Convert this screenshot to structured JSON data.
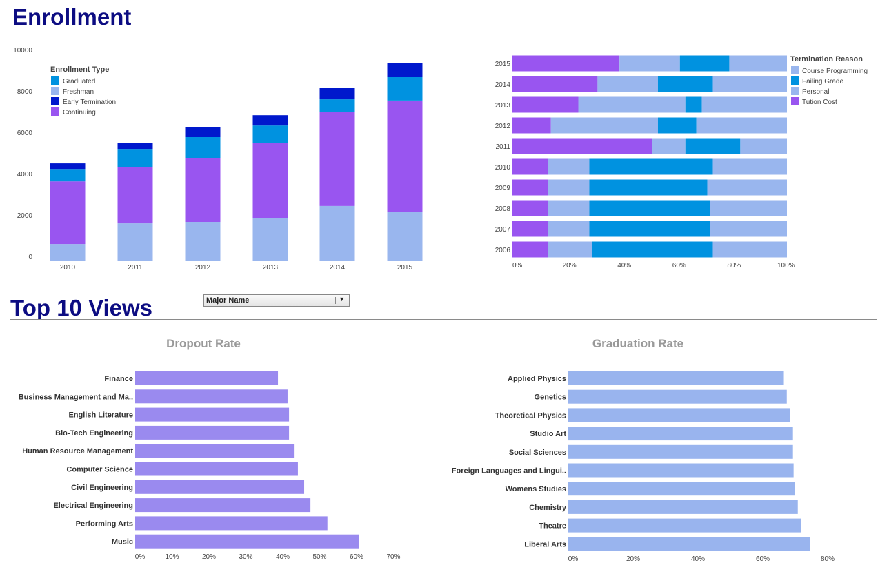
{
  "enrollment_section": {
    "title": "Enrollment"
  },
  "top10_section": {
    "title": "Top 10 Views",
    "filter": {
      "selected": "Major Name"
    }
  },
  "colors": {
    "title": "#0c0c82",
    "graduated": "#0092e0",
    "freshman": "#99b6ee",
    "early_termination": "#0018cc",
    "continuing": "#9955f0",
    "dropout_bar": "#9a8aef",
    "graduation_bar": "#99b4ee"
  },
  "chart_data": [
    {
      "id": "enrollment",
      "type": "bar",
      "stacked": true,
      "legend_title": "Enrollment Type",
      "legend_placement": "top-left",
      "legend": [
        "Graduated",
        "Freshman",
        "Early Termination",
        "Continuing"
      ],
      "categories": [
        "2010",
        "2011",
        "2012",
        "2013",
        "2014",
        "2015"
      ],
      "ylim": [
        0,
        10000
      ],
      "yticks": [
        "0",
        "2000",
        "4000",
        "6000",
        "8000",
        "10000"
      ],
      "grid": false,
      "series": [
        {
          "name": "Freshman",
          "color": "#99b6ee",
          "values": [
            830,
            1830,
            1900,
            2100,
            2670,
            2370
          ]
        },
        {
          "name": "Continuing",
          "color": "#9955f0",
          "values": [
            3030,
            2730,
            3070,
            3630,
            4530,
            5400
          ]
        },
        {
          "name": "Graduated",
          "color": "#0092e0",
          "values": [
            600,
            870,
            1030,
            830,
            630,
            1130
          ]
        },
        {
          "name": "Early Termination",
          "color": "#0018cc",
          "values": [
            270,
            270,
            500,
            500,
            570,
            700
          ]
        }
      ]
    },
    {
      "id": "termination",
      "type": "bar",
      "orientation": "horizontal",
      "stacked": true,
      "percent": true,
      "legend_title": "Termination Reason",
      "legend_placement": "right",
      "legend": [
        {
          "name": "Course Programming",
          "color": "#99b6ee"
        },
        {
          "name": "Failing Grade",
          "color": "#0092e0"
        },
        {
          "name": "Personal",
          "color": "#99b6ee"
        },
        {
          "name": "Tution Cost",
          "color": "#9955f0"
        }
      ],
      "categories": [
        "2015",
        "2014",
        "2013",
        "2012",
        "2011",
        "2010",
        "2009",
        "2008",
        "2007",
        "2006"
      ],
      "xlim": [
        0,
        100
      ],
      "xticks": [
        "0%",
        "20%",
        "40%",
        "60%",
        "80%",
        "100%"
      ],
      "series": [
        {
          "name": "Tution Cost",
          "color": "#9955f0",
          "values": [
            39,
            31,
            24,
            14,
            51,
            13,
            13,
            13,
            13,
            13
          ]
        },
        {
          "name": "Personal",
          "color": "#99b6ee",
          "values": [
            22,
            22,
            39,
            39,
            12,
            15,
            15,
            15,
            15,
            16
          ]
        },
        {
          "name": "Failing Grade",
          "color": "#0092e0",
          "values": [
            18,
            20,
            6,
            14,
            20,
            45,
            43,
            44,
            44,
            44
          ]
        },
        {
          "name": "Course Programming",
          "color": "#99b6ee",
          "values": [
            21,
            27,
            31,
            33,
            17,
            27,
            29,
            28,
            28,
            27
          ]
        }
      ]
    },
    {
      "id": "dropout",
      "type": "bar",
      "orientation": "horizontal",
      "title": "Dropout Rate",
      "categories": [
        "Finance",
        "Business Management and Ma..",
        "English Literature",
        "Bio-Tech Engineering",
        "Human Resource Management",
        "Computer Science",
        "Civil Engineering",
        "Electrical Engineering",
        "Performing Arts",
        "Music"
      ],
      "values": [
        38.7,
        41.3,
        41.7,
        41.7,
        43.2,
        44.1,
        45.8,
        47.5,
        52.1,
        60.7
      ],
      "xlim": [
        0,
        70
      ],
      "xticks": [
        "0%",
        "10%",
        "20%",
        "30%",
        "40%",
        "50%",
        "60%",
        "70%"
      ],
      "color": "#9a8aef"
    },
    {
      "id": "graduation",
      "type": "bar",
      "orientation": "horizontal",
      "title": "Graduation Rate",
      "categories": [
        "Applied Physics",
        "Genetics",
        "Theoretical Physics",
        "Studio Art",
        "Social Sciences",
        "Foreign Languages and Lingui..",
        "Womens Studies",
        "Chemistry",
        "Theatre",
        "Liberal Arts"
      ],
      "values": [
        66.5,
        67.4,
        68.4,
        69.3,
        69.3,
        69.5,
        69.8,
        70.8,
        71.9,
        74.5
      ],
      "xlim": [
        0,
        80
      ],
      "xticks": [
        "0%",
        "20%",
        "40%",
        "60%",
        "80%"
      ],
      "color": "#99b4ee"
    }
  ]
}
